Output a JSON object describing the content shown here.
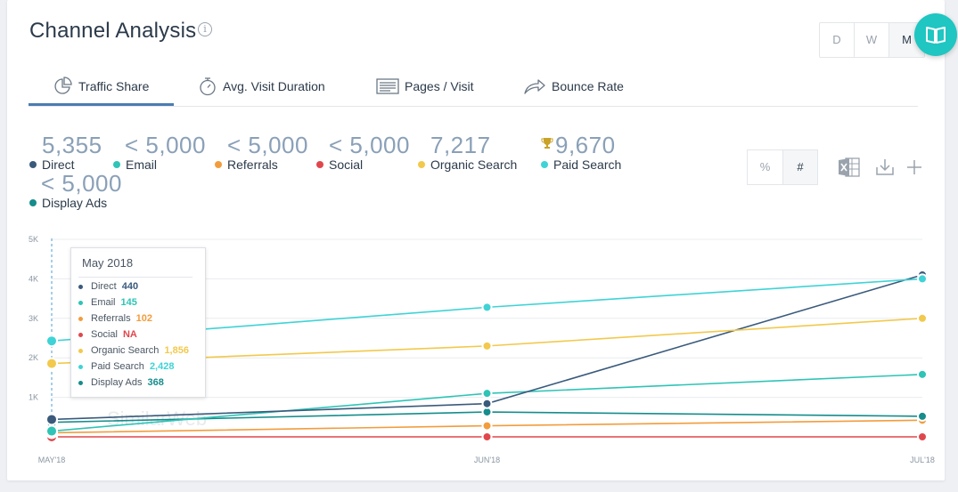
{
  "header": {
    "title": "Channel Analysis",
    "info_icon": "info-icon"
  },
  "period": {
    "options": [
      "D",
      "W",
      "M"
    ],
    "selected": "M"
  },
  "fab_icon": "book-icon",
  "tabs": [
    {
      "label": "Traffic Share",
      "icon": "pie-chart-icon",
      "active": true
    },
    {
      "label": "Avg. Visit Duration",
      "icon": "stopwatch-icon",
      "active": false
    },
    {
      "label": "Pages / Visit",
      "icon": "pages-icon",
      "active": false
    },
    {
      "label": "Bounce Rate",
      "icon": "bounce-arrow-icon",
      "active": false
    }
  ],
  "metrics": [
    {
      "value": "5,355",
      "label": "Direct",
      "color": "#3a5a7c"
    },
    {
      "value": "< 5,000",
      "label": "Email",
      "color": "#2ec4b6"
    },
    {
      "value": "< 5,000",
      "label": "Referrals",
      "color": "#f39c3c"
    },
    {
      "value": "< 5,000",
      "label": "Social",
      "color": "#e0474c"
    },
    {
      "value": "7,217",
      "label": "Organic Search",
      "color": "#f2c94c"
    },
    {
      "value": "9,670",
      "label": "Paid Search",
      "color": "#3fd3d6",
      "trophy": true
    },
    {
      "value": "< 5,000",
      "label": "Display Ads",
      "color": "#168c8c"
    }
  ],
  "toggle": {
    "options": [
      "%",
      "#"
    ],
    "selected": "#"
  },
  "tools": [
    "excel-icon",
    "download-icon",
    "plus-icon"
  ],
  "watermark": "SimilarWeb",
  "tooltip": {
    "title": "May 2018",
    "rows": [
      {
        "label": "Direct",
        "value": "440",
        "color": "#3a5a7c"
      },
      {
        "label": "Email",
        "value": "145",
        "color": "#2ec4b6"
      },
      {
        "label": "Referrals",
        "value": "102",
        "color": "#f39c3c"
      },
      {
        "label": "Social",
        "value": "NA",
        "color": "#e0474c"
      },
      {
        "label": "Organic Search",
        "value": "1,856",
        "color": "#f2c94c"
      },
      {
        "label": "Paid Search",
        "value": "2,428",
        "color": "#3fd3d6"
      },
      {
        "label": "Display Ads",
        "value": "368",
        "color": "#168c8c"
      }
    ]
  },
  "chart_data": {
    "type": "line",
    "x": [
      "MAY'18",
      "JUN'18",
      "JUL'18"
    ],
    "y_ticks": [
      "5K",
      "4K",
      "3K",
      "2K",
      "1K"
    ],
    "ylim": [
      0,
      5000
    ],
    "grid": true,
    "series": [
      {
        "name": "Social",
        "color": "#e0474c",
        "values": [
          0,
          0,
          0
        ]
      },
      {
        "name": "Referrals",
        "color": "#f39c3c",
        "values": [
          102,
          280,
          420
        ]
      },
      {
        "name": "Display Ads",
        "color": "#168c8c",
        "values": [
          368,
          630,
          520
        ]
      },
      {
        "name": "Email",
        "color": "#2ec4b6",
        "values": [
          145,
          1100,
          1580
        ]
      },
      {
        "name": "Direct",
        "color": "#3a5a7c",
        "values": [
          440,
          840,
          4100
        ]
      },
      {
        "name": "Organic Search",
        "color": "#f2c94c",
        "values": [
          1856,
          2300,
          3000
        ]
      },
      {
        "name": "Paid Search",
        "color": "#3fd3d6",
        "values": [
          2428,
          3280,
          4000
        ]
      }
    ]
  }
}
